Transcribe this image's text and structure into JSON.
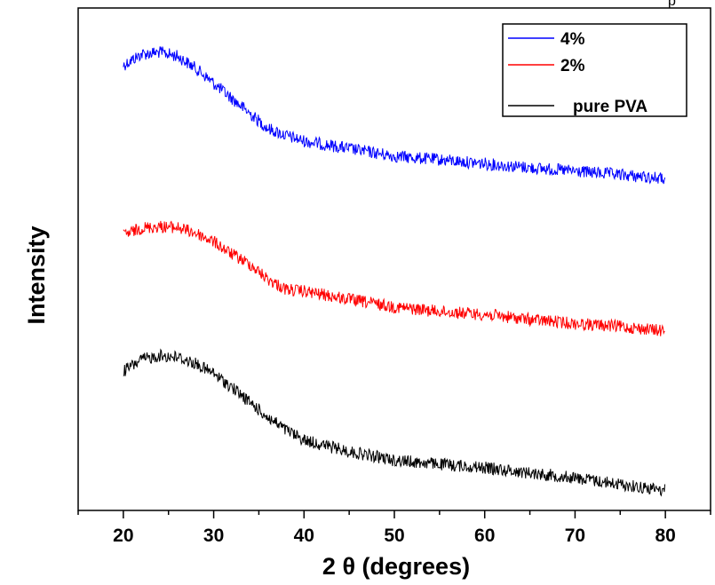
{
  "chart_data": {
    "type": "line",
    "title": "",
    "xlabel": "2 θ  (degrees)",
    "ylabel": "Intensity",
    "xlim": [
      15,
      85
    ],
    "ylim": [
      0,
      1
    ],
    "y_tick_labels": "none",
    "grid": false,
    "legend_position": "top-right",
    "x_ticks": [
      20,
      30,
      40,
      50,
      60,
      70,
      80
    ],
    "x_tick_labels": [
      "20",
      "30",
      "40",
      "50",
      "60",
      "70",
      "80"
    ],
    "corner_mark": "p",
    "x": [
      20,
      22,
      24,
      26,
      28,
      30,
      32,
      34,
      36,
      38,
      40,
      45,
      50,
      55,
      60,
      65,
      70,
      75,
      80
    ],
    "series": [
      {
        "name": "4%",
        "color": "#0000ff",
        "values": [
          0.886,
          0.908,
          0.912,
          0.904,
          0.88,
          0.85,
          0.82,
          0.79,
          0.76,
          0.746,
          0.735,
          0.72,
          0.705,
          0.698,
          0.69,
          0.682,
          0.675,
          0.668,
          0.66
        ]
      },
      {
        "name": "2%",
        "color": "#ff0000",
        "values": [
          0.547,
          0.562,
          0.565,
          0.563,
          0.552,
          0.535,
          0.51,
          0.49,
          0.46,
          0.44,
          0.436,
          0.42,
          0.405,
          0.396,
          0.39,
          0.38,
          0.372,
          0.366,
          0.357
        ]
      },
      {
        "name": "pure PVA",
        "color": "#000000",
        "values": [
          0.277,
          0.3,
          0.308,
          0.305,
          0.292,
          0.272,
          0.245,
          0.215,
          0.185,
          0.16,
          0.14,
          0.117,
          0.1,
          0.092,
          0.085,
          0.075,
          0.065,
          0.052,
          0.04
        ]
      }
    ]
  }
}
